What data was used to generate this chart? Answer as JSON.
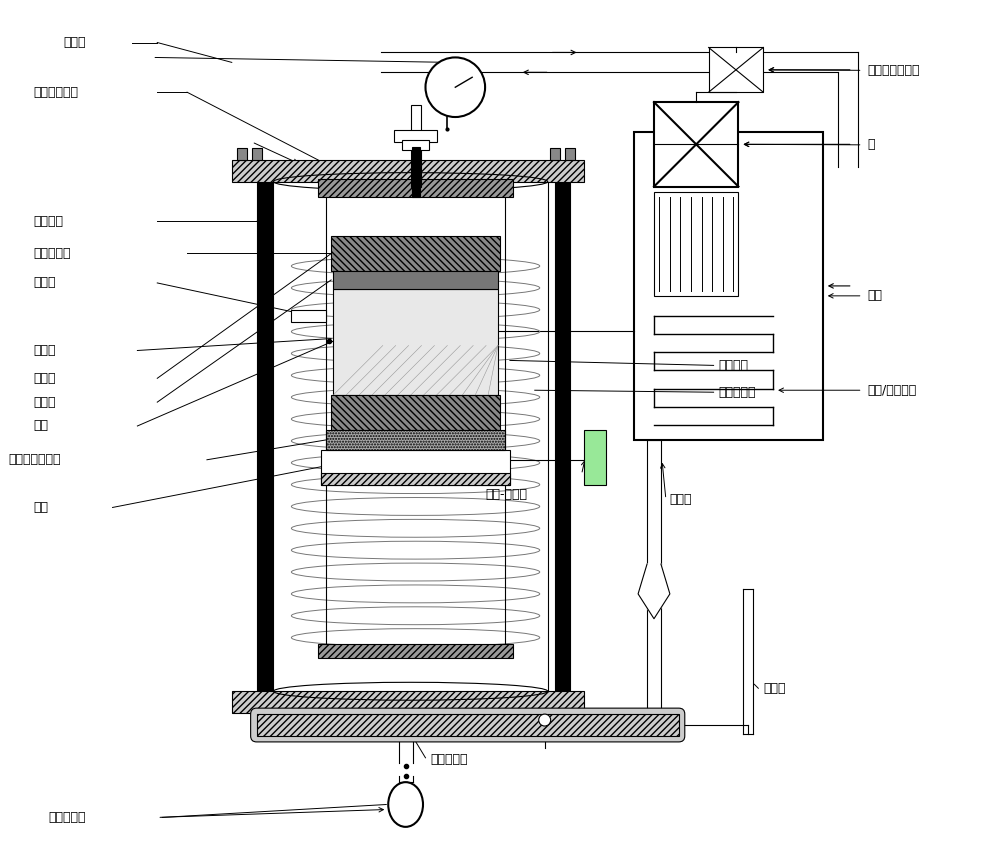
{
  "bg_color": "#ffffff",
  "line_color": "#000000",
  "labels": {
    "baifen_biao": "百分表",
    "lian_qi_ya": "连气压控制器",
    "wai_ya_li": "外压力室",
    "zhu_xiang": "竖向加荷轴",
    "can_zhao_guan": "参照管",
    "re_dian_ou": "热电偶",
    "shi_yang_mao": "试样帽",
    "tou_shui_shi": "透水石",
    "shi_yang": "试样",
    "gao_jin_qi": "高进气值陶土板",
    "di_zuo": "底座",
    "ya_cha": "压差传感器",
    "nei_ya_li": "内压力室",
    "luo_xuan": "螺旋式铜管",
    "wan_qu": "弯曲-伸展元",
    "di_ding_guan": "滴定管",
    "kong_qi_guan": "孔气压管线",
    "zhen_liu_guan": "镇流管",
    "wen_du": "温度自动调节器",
    "beng": "泵",
    "shui_yu": "水浴",
    "jia_re": "加热/冷却单元"
  },
  "font_size": 9,
  "title_font_size": 11
}
